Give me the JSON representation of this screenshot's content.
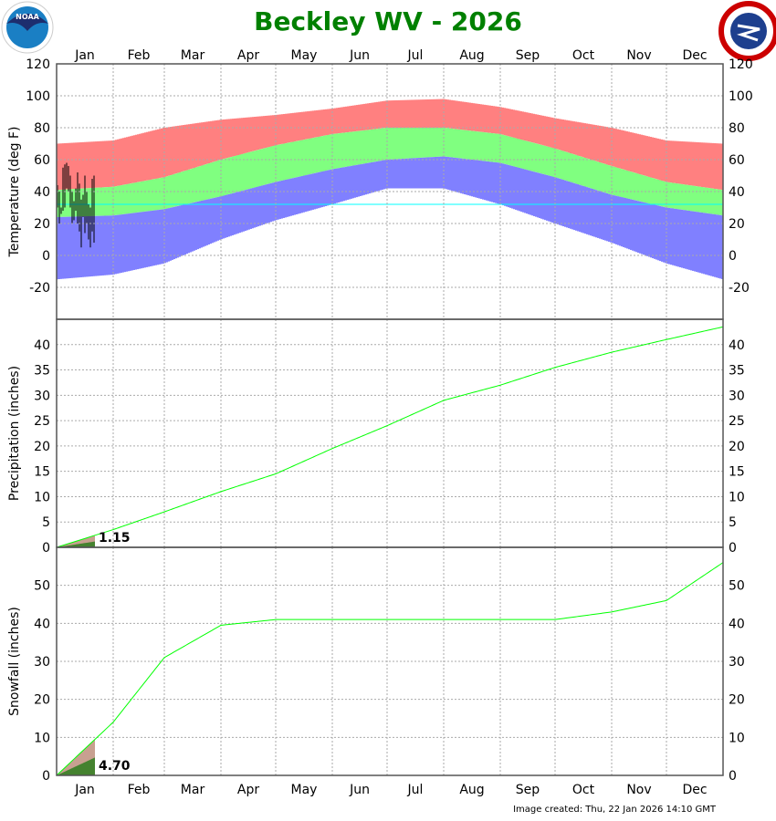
{
  "logos": {
    "left": "NOAA",
    "right": "NATIONAL WEATHER SERVICE"
  },
  "colors": {
    "record_high": "#ff8080",
    "normal": "#80ff80",
    "record_low": "#8080ff",
    "freeze_line": "#00ffff",
    "observed": "#000000",
    "cumulative_normal": "#00ff00",
    "observed_fill": "#2e7d1e",
    "normal_fill": "#c8a090"
  },
  "chart_data": [
    {
      "type": "bar",
      "title": "Beckley WV - 2026",
      "ylabel": "Temperature (deg F)",
      "ylim": [
        -40,
        120
      ],
      "yticks": [
        -20,
        0,
        20,
        40,
        60,
        80,
        100,
        120
      ],
      "grid": true,
      "months": [
        "Jan",
        "Feb",
        "Mar",
        "Apr",
        "May",
        "Jun",
        "Jul",
        "Aug",
        "Sep",
        "Oct",
        "Nov",
        "Dec"
      ],
      "series_monthly_start": {
        "record_high": [
          70,
          72,
          80,
          85,
          88,
          92,
          97,
          98,
          93,
          86,
          80,
          72,
          70
        ],
        "normal_high": [
          41,
          43,
          49,
          60,
          69,
          76,
          80,
          80,
          76,
          67,
          56,
          46,
          41
        ],
        "normal_low": [
          24,
          25,
          29,
          37,
          46,
          54,
          60,
          62,
          58,
          49,
          38,
          30,
          25
        ],
        "record_low": [
          -15,
          -12,
          -5,
          10,
          22,
          32,
          42,
          42,
          32,
          20,
          8,
          -5,
          -15
        ]
      },
      "freeze_line": 32,
      "observed": {
        "dates": [
          "Jan 1",
          "Jan 2",
          "Jan 3",
          "Jan 4",
          "Jan 5",
          "Jan 6",
          "Jan 7",
          "Jan 8",
          "Jan 9",
          "Jan 10",
          "Jan 11",
          "Jan 12",
          "Jan 13",
          "Jan 14",
          "Jan 15",
          "Jan 16",
          "Jan 17",
          "Jan 18",
          "Jan 19",
          "Jan 20",
          "Jan 21"
        ],
        "high": [
          44,
          40,
          30,
          55,
          57,
          58,
          56,
          50,
          40,
          34,
          42,
          52,
          45,
          35,
          38,
          50,
          40,
          32,
          30,
          48,
          50
        ],
        "low": [
          30,
          20,
          26,
          28,
          30,
          42,
          40,
          30,
          20,
          22,
          28,
          20,
          15,
          5,
          24,
          14,
          20,
          10,
          5,
          15,
          8
        ]
      }
    },
    {
      "type": "line",
      "ylabel": "Precipitation (inches)",
      "ylim": [
        0,
        45
      ],
      "yticks": [
        0,
        5,
        10,
        15,
        20,
        25,
        30,
        35,
        40
      ],
      "grid": true,
      "normal_cumulative_monthly_start": [
        0,
        3.5,
        7,
        11,
        14.5,
        19.5,
        24,
        29,
        32,
        35.5,
        38.5,
        41,
        43.5
      ],
      "observed_total": 1.15,
      "observed_label": "1.15",
      "observed_through": "Jan 21"
    },
    {
      "type": "line",
      "ylabel": "Snowfall (inches)",
      "ylim": [
        0,
        60
      ],
      "yticks": [
        0,
        10,
        20,
        30,
        40,
        50
      ],
      "grid": true,
      "normal_cumulative_monthly_start": [
        0,
        14,
        31,
        39.5,
        41,
        41,
        41,
        41,
        41,
        41,
        43,
        46,
        56
      ],
      "observed_total": 4.7,
      "observed_label": "4.70",
      "observed_through": "Jan 21"
    }
  ],
  "footer": "Image created: Thu, 22 Jan 2026 14:10 GMT"
}
